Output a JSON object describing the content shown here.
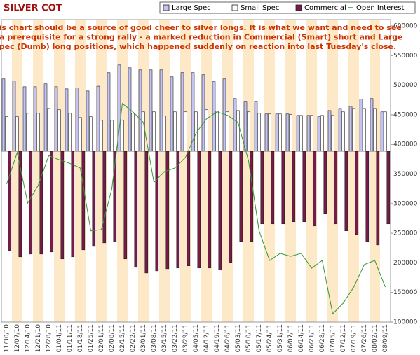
{
  "chart_data": {
    "type": "bar",
    "title": "SILVER COT",
    "annotation": [
      "This chart should be a source of good cheer to silver longs. It is what we want and need to see",
      "as a prerequisite for a strong rally - a marked reduction in Commercial (Smart) short and Large",
      "Spec (Dumb) long positions, which happened suddenly on reaction into last Tuesday's close."
    ],
    "categories": [
      "11/30/10",
      "12/07/10",
      "12/14/10",
      "12/21/10",
      "12/28/10",
      "01/04/11",
      "01/11/11",
      "01/18/11",
      "01/25/11",
      "02/01/11",
      "02/08/11",
      "02/15/11",
      "02/22/11",
      "03/01/11",
      "03/08/11",
      "03/15/11",
      "03/22/11",
      "03/29/11",
      "04/05/11",
      "04/12/11",
      "04/19/11",
      "04/26/11",
      "05/03/11",
      "05/10/11",
      "05/17/11",
      "05/24/11",
      "05/31/11",
      "06/07/11",
      "06/14/11",
      "06/21/11",
      "06/28/11",
      "07/05/11",
      "07/12/11",
      "07/19/11",
      "07/26/11",
      "08/02/11",
      "08/09/11"
    ],
    "series": [
      {
        "name": "Large Spec",
        "color": "#c4c4f4",
        "values": [
          54700,
          53100,
          48800,
          48800,
          51000,
          48800,
          47200,
          47800,
          45600,
          49200,
          59500,
          65300,
          63200,
          61600,
          61600,
          61600,
          56300,
          59500,
          59500,
          57900,
          52600,
          54700,
          39800,
          37700,
          37700,
          28100,
          28100,
          28100,
          27000,
          27000,
          26000,
          30700,
          32300,
          33900,
          39300,
          39800,
          29700
        ]
      },
      {
        "name": "Small Spec",
        "color": "#ffffff",
        "values": [
          26000,
          26000,
          28600,
          28600,
          32300,
          31300,
          28600,
          25400,
          26000,
          23300,
          23300,
          23300,
          28600,
          29700,
          29700,
          26500,
          29700,
          29700,
          29700,
          31300,
          30200,
          29700,
          30700,
          29700,
          28600,
          28100,
          28100,
          27600,
          27000,
          27000,
          27000,
          27000,
          29700,
          32300,
          32300,
          32300,
          29700
        ]
      },
      {
        "name": "Commercial",
        "color": "#7a1a4a",
        "values": [
          -75700,
          -80400,
          -78300,
          -78300,
          -76700,
          -82000,
          -80400,
          -75100,
          -72500,
          -69800,
          -68700,
          -82000,
          -88400,
          -92700,
          -91100,
          -89500,
          -88900,
          -87300,
          -88900,
          -88900,
          -90500,
          -84800,
          -68700,
          -68700,
          -55400,
          -55400,
          -55400,
          -53800,
          -53800,
          -57000,
          -47400,
          -55400,
          -60700,
          -63400,
          -68700,
          -71400,
          -55400
        ]
      },
      {
        "name": "Open Interest",
        "color": "#339933",
        "type": "line",
        "axis": "y2",
        "values": [
          333000,
          386000,
          301000,
          331000,
          381000,
          374000,
          368000,
          360000,
          254000,
          256000,
          325000,
          469000,
          455000,
          437000,
          336000,
          354000,
          360000,
          378000,
          419000,
          443000,
          455000,
          449000,
          437000,
          372000,
          254000,
          204000,
          216000,
          211000,
          216000,
          191000,
          204000,
          114000,
          132000,
          159000,
          197000,
          204000,
          159000
        ]
      }
    ],
    "ylim": [
      -130000,
      95000
    ],
    "y2lim": [
      100000,
      600000
    ],
    "y2ticks": [
      100000,
      150000,
      200000,
      250000,
      300000,
      350000,
      400000,
      450000,
      500000,
      550000,
      600000
    ],
    "band_color": "#fde8c8"
  }
}
